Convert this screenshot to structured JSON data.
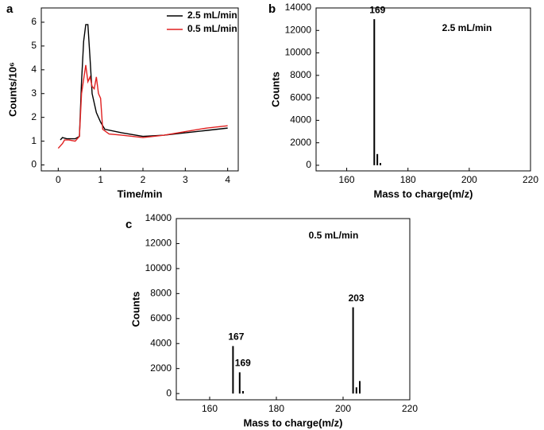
{
  "chart_data": [
    {
      "type": "line",
      "panel": "a",
      "xlabel": "Time/min",
      "ylabel": "Counts/10⁶",
      "xlim": [
        -0.4,
        4.25
      ],
      "ylim": [
        -0.25,
        6.6
      ],
      "xticks": [
        0,
        1,
        2,
        3,
        4
      ],
      "yticks": [
        0,
        1,
        2,
        3,
        4,
        5,
        6
      ],
      "legend": "upper right",
      "series": [
        {
          "name": "2.5 mL/min",
          "color": "#000000",
          "x": [
            0.05,
            0.1,
            0.2,
            0.4,
            0.5,
            0.55,
            0.6,
            0.65,
            0.7,
            0.75,
            0.8,
            0.9,
            1.0,
            1.1,
            1.5,
            2.0,
            2.5,
            3.0,
            3.5,
            4.0
          ],
          "values": [
            1.05,
            1.15,
            1.1,
            1.1,
            1.2,
            3.5,
            5.2,
            5.9,
            5.9,
            4.5,
            3.0,
            2.2,
            1.8,
            1.5,
            1.35,
            1.2,
            1.25,
            1.35,
            1.45,
            1.55
          ]
        },
        {
          "name": "0.5 mL/min",
          "color": "#e02020",
          "x": [
            0.0,
            0.1,
            0.15,
            0.25,
            0.4,
            0.5,
            0.55,
            0.6,
            0.65,
            0.7,
            0.75,
            0.8,
            0.85,
            0.9,
            0.95,
            1.0,
            1.05,
            1.2,
            1.5,
            2.0,
            2.5,
            3.0,
            3.5,
            4.0
          ],
          "values": [
            0.7,
            0.9,
            1.05,
            1.05,
            1.0,
            1.2,
            3.0,
            3.6,
            4.2,
            3.5,
            3.7,
            3.3,
            3.2,
            3.7,
            3.0,
            2.8,
            1.5,
            1.3,
            1.25,
            1.15,
            1.25,
            1.4,
            1.55,
            1.65
          ]
        }
      ]
    },
    {
      "type": "stem",
      "panel": "b",
      "xlabel": "Mass to charge(m/z)",
      "ylabel": "Counts",
      "annotation": "2.5 mL/min",
      "xlim": [
        150,
        220
      ],
      "ylim": [
        -500,
        14000
      ],
      "xticks": [
        160,
        180,
        200,
        220
      ],
      "yticks": [
        0,
        2000,
        4000,
        6000,
        8000,
        10000,
        12000,
        14000
      ],
      "color": "#000000",
      "x": [
        169,
        170,
        171
      ],
      "values": [
        13000,
        1000,
        200
      ],
      "peak_labels": [
        169
      ]
    },
    {
      "type": "stem",
      "panel": "c",
      "xlabel": "Mass to charge(m/z)",
      "ylabel": "Counts",
      "annotation": "0.5 mL/min",
      "xlim": [
        150,
        220
      ],
      "ylim": [
        -500,
        14000
      ],
      "xticks": [
        160,
        180,
        200,
        220
      ],
      "yticks": [
        0,
        2000,
        4000,
        6000,
        8000,
        10000,
        12000,
        14000
      ],
      "color": "#000000",
      "x": [
        167,
        169,
        170,
        203,
        204,
        205
      ],
      "values": [
        3800,
        1700,
        200,
        6900,
        500,
        1000
      ],
      "peak_labels": [
        167,
        169,
        203
      ]
    }
  ]
}
